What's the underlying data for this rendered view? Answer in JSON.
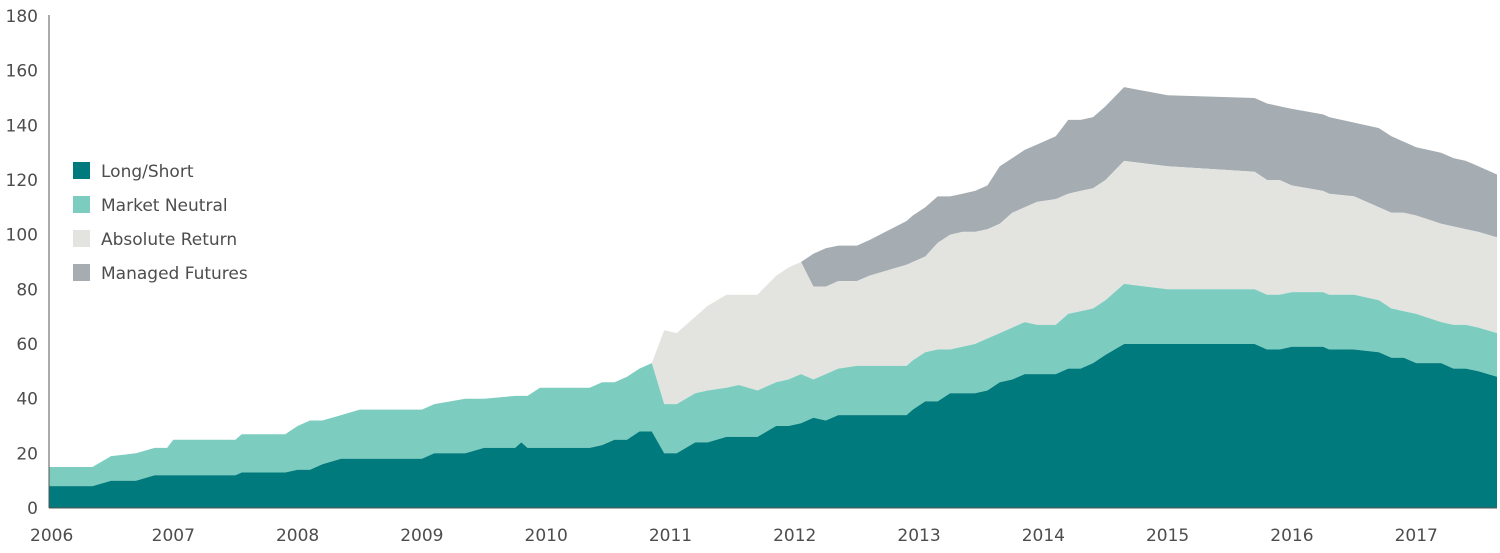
{
  "chart_data": {
    "type": "area",
    "stacked": true,
    "ylim": [
      0,
      180
    ],
    "xlim": [
      2006.0,
      2017.65
    ],
    "y_ticks": [
      "0",
      "20",
      "40",
      "60",
      "80",
      "100",
      "120",
      "140",
      "160",
      "180"
    ],
    "x_ticks": [
      "2006",
      "2007",
      "2008",
      "2009",
      "2010",
      "2011",
      "2012",
      "2013",
      "2014",
      "2015",
      "2016",
      "2017"
    ],
    "grid": false,
    "legend_position": "left",
    "series": [
      {
        "name": "Long/Short",
        "color": "#007a7c",
        "points": [
          [
            2006.0,
            8
          ],
          [
            2006.35,
            8
          ],
          [
            2006.5,
            10
          ],
          [
            2006.7,
            10
          ],
          [
            2006.85,
            12
          ],
          [
            2007.5,
            12
          ],
          [
            2007.55,
            13
          ],
          [
            2007.9,
            13
          ],
          [
            2008.0,
            14
          ],
          [
            2008.1,
            14
          ],
          [
            2008.2,
            16
          ],
          [
            2008.35,
            18
          ],
          [
            2009.0,
            18
          ],
          [
            2009.1,
            20
          ],
          [
            2009.35,
            20
          ],
          [
            2009.5,
            22
          ],
          [
            2009.75,
            22
          ],
          [
            2009.8,
            24
          ],
          [
            2009.85,
            22
          ],
          [
            2010.35,
            22
          ],
          [
            2010.45,
            23
          ],
          [
            2010.55,
            25
          ],
          [
            2010.65,
            25
          ],
          [
            2010.75,
            28
          ],
          [
            2010.85,
            28
          ],
          [
            2010.95,
            20
          ],
          [
            2011.05,
            20
          ],
          [
            2011.2,
            24
          ],
          [
            2011.3,
            24
          ],
          [
            2011.45,
            26
          ],
          [
            2011.7,
            26
          ],
          [
            2011.85,
            30
          ],
          [
            2011.95,
            30
          ],
          [
            2012.05,
            31
          ],
          [
            2012.15,
            33
          ],
          [
            2012.25,
            32
          ],
          [
            2012.35,
            34
          ],
          [
            2012.5,
            34
          ],
          [
            2012.6,
            34
          ],
          [
            2012.9,
            34
          ],
          [
            2012.95,
            36
          ],
          [
            2013.05,
            39
          ],
          [
            2013.15,
            39
          ],
          [
            2013.25,
            42
          ],
          [
            2013.35,
            42
          ],
          [
            2013.45,
            42
          ],
          [
            2013.55,
            43
          ],
          [
            2013.65,
            46
          ],
          [
            2013.75,
            47
          ],
          [
            2013.85,
            49
          ],
          [
            2013.95,
            49
          ],
          [
            2014.1,
            49
          ],
          [
            2014.2,
            51
          ],
          [
            2014.3,
            51
          ],
          [
            2014.4,
            53
          ],
          [
            2014.5,
            56
          ],
          [
            2014.65,
            60
          ],
          [
            2015.0,
            60
          ],
          [
            2015.7,
            60
          ],
          [
            2015.8,
            58
          ],
          [
            2015.9,
            58
          ],
          [
            2016.0,
            59
          ],
          [
            2016.25,
            59
          ],
          [
            2016.3,
            58
          ],
          [
            2016.5,
            58
          ],
          [
            2016.7,
            57
          ],
          [
            2016.8,
            55
          ],
          [
            2016.9,
            55
          ],
          [
            2017.0,
            53
          ],
          [
            2017.2,
            53
          ],
          [
            2017.3,
            51
          ],
          [
            2017.4,
            51
          ],
          [
            2017.5,
            50
          ],
          [
            2017.65,
            48
          ]
        ]
      },
      {
        "name": "Market Neutral",
        "color": "#7ccdc0",
        "points": [
          [
            2006.0,
            15
          ],
          [
            2006.35,
            15
          ],
          [
            2006.5,
            19
          ],
          [
            2006.7,
            20
          ],
          [
            2006.85,
            22
          ],
          [
            2006.95,
            22
          ],
          [
            2007.0,
            25
          ],
          [
            2007.5,
            25
          ],
          [
            2007.55,
            27
          ],
          [
            2007.9,
            27
          ],
          [
            2008.0,
            30
          ],
          [
            2008.1,
            32
          ],
          [
            2008.2,
            32
          ],
          [
            2008.35,
            34
          ],
          [
            2008.5,
            36
          ],
          [
            2009.0,
            36
          ],
          [
            2009.1,
            38
          ],
          [
            2009.35,
            40
          ],
          [
            2009.5,
            40
          ],
          [
            2009.75,
            41
          ],
          [
            2009.85,
            41
          ],
          [
            2009.95,
            44
          ],
          [
            2010.35,
            44
          ],
          [
            2010.45,
            46
          ],
          [
            2010.55,
            46
          ],
          [
            2010.65,
            48
          ],
          [
            2010.75,
            51
          ],
          [
            2010.85,
            53
          ],
          [
            2010.95,
            38
          ],
          [
            2011.05,
            38
          ],
          [
            2011.2,
            42
          ],
          [
            2011.3,
            43
          ],
          [
            2011.45,
            44
          ],
          [
            2011.55,
            45
          ],
          [
            2011.7,
            43
          ],
          [
            2011.85,
            46
          ],
          [
            2011.95,
            47
          ],
          [
            2012.05,
            49
          ],
          [
            2012.15,
            47
          ],
          [
            2012.25,
            49
          ],
          [
            2012.35,
            51
          ],
          [
            2012.5,
            52
          ],
          [
            2012.6,
            52
          ],
          [
            2012.9,
            52
          ],
          [
            2012.95,
            54
          ],
          [
            2013.05,
            57
          ],
          [
            2013.15,
            58
          ],
          [
            2013.25,
            58
          ],
          [
            2013.35,
            59
          ],
          [
            2013.45,
            60
          ],
          [
            2013.55,
            62
          ],
          [
            2013.65,
            64
          ],
          [
            2013.75,
            66
          ],
          [
            2013.85,
            68
          ],
          [
            2013.95,
            67
          ],
          [
            2014.1,
            67
          ],
          [
            2014.2,
            71
          ],
          [
            2014.3,
            72
          ],
          [
            2014.4,
            73
          ],
          [
            2014.5,
            76
          ],
          [
            2014.65,
            82
          ],
          [
            2015.0,
            80
          ],
          [
            2015.7,
            80
          ],
          [
            2015.8,
            78
          ],
          [
            2015.9,
            78
          ],
          [
            2016.0,
            79
          ],
          [
            2016.25,
            79
          ],
          [
            2016.3,
            78
          ],
          [
            2016.5,
            78
          ],
          [
            2016.7,
            76
          ],
          [
            2016.8,
            73
          ],
          [
            2016.9,
            72
          ],
          [
            2017.0,
            71
          ],
          [
            2017.2,
            68
          ],
          [
            2017.3,
            67
          ],
          [
            2017.4,
            67
          ],
          [
            2017.5,
            66
          ],
          [
            2017.65,
            64
          ]
        ]
      },
      {
        "name": "Absolute Return",
        "color": "#e3e3df",
        "points": [
          [
            2010.85,
            53
          ],
          [
            2010.95,
            65
          ],
          [
            2011.05,
            64
          ],
          [
            2011.2,
            70
          ],
          [
            2011.3,
            74
          ],
          [
            2011.45,
            78
          ],
          [
            2011.55,
            78
          ],
          [
            2011.7,
            78
          ],
          [
            2011.85,
            85
          ],
          [
            2011.95,
            88
          ],
          [
            2012.05,
            90
          ],
          [
            2012.15,
            81
          ],
          [
            2012.25,
            81
          ],
          [
            2012.35,
            83
          ],
          [
            2012.5,
            83
          ],
          [
            2012.6,
            85
          ],
          [
            2012.9,
            89
          ],
          [
            2012.95,
            90
          ],
          [
            2013.05,
            92
          ],
          [
            2013.15,
            97
          ],
          [
            2013.25,
            100
          ],
          [
            2013.35,
            101
          ],
          [
            2013.45,
            101
          ],
          [
            2013.55,
            102
          ],
          [
            2013.65,
            104
          ],
          [
            2013.75,
            108
          ],
          [
            2013.85,
            110
          ],
          [
            2013.95,
            112
          ],
          [
            2014.1,
            113
          ],
          [
            2014.2,
            115
          ],
          [
            2014.3,
            116
          ],
          [
            2014.4,
            117
          ],
          [
            2014.5,
            120
          ],
          [
            2014.65,
            127
          ],
          [
            2015.0,
            125
          ],
          [
            2015.7,
            123
          ],
          [
            2015.8,
            120
          ],
          [
            2015.9,
            120
          ],
          [
            2016.0,
            118
          ],
          [
            2016.25,
            116
          ],
          [
            2016.3,
            115
          ],
          [
            2016.5,
            114
          ],
          [
            2016.7,
            110
          ],
          [
            2016.8,
            108
          ],
          [
            2016.9,
            108
          ],
          [
            2017.0,
            107
          ],
          [
            2017.2,
            104
          ],
          [
            2017.3,
            103
          ],
          [
            2017.4,
            102
          ],
          [
            2017.5,
            101
          ],
          [
            2017.65,
            99
          ]
        ]
      },
      {
        "name": "Managed Futures",
        "color": "#a5adb2",
        "points": [
          [
            2012.05,
            90
          ],
          [
            2012.15,
            93
          ],
          [
            2012.25,
            95
          ],
          [
            2012.35,
            96
          ],
          [
            2012.5,
            96
          ],
          [
            2012.6,
            98
          ],
          [
            2012.9,
            105
          ],
          [
            2012.95,
            107
          ],
          [
            2013.05,
            110
          ],
          [
            2013.15,
            114
          ],
          [
            2013.25,
            114
          ],
          [
            2013.35,
            115
          ],
          [
            2013.45,
            116
          ],
          [
            2013.55,
            118
          ],
          [
            2013.65,
            125
          ],
          [
            2013.75,
            128
          ],
          [
            2013.85,
            131
          ],
          [
            2013.95,
            133
          ],
          [
            2014.1,
            136
          ],
          [
            2014.2,
            142
          ],
          [
            2014.3,
            142
          ],
          [
            2014.4,
            143
          ],
          [
            2014.5,
            147
          ],
          [
            2014.65,
            154
          ],
          [
            2015.0,
            151
          ],
          [
            2015.7,
            150
          ],
          [
            2015.8,
            148
          ],
          [
            2015.9,
            147
          ],
          [
            2016.0,
            146
          ],
          [
            2016.25,
            144
          ],
          [
            2016.3,
            143
          ],
          [
            2016.5,
            141
          ],
          [
            2016.7,
            139
          ],
          [
            2016.8,
            136
          ],
          [
            2016.9,
            134
          ],
          [
            2017.0,
            132
          ],
          [
            2017.2,
            130
          ],
          [
            2017.3,
            128
          ],
          [
            2017.4,
            127
          ],
          [
            2017.5,
            125
          ],
          [
            2017.65,
            122
          ]
        ]
      }
    ]
  }
}
